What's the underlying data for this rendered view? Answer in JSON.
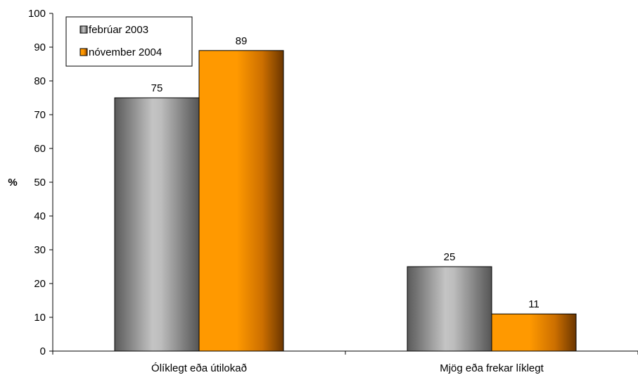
{
  "chart_data": {
    "type": "bar",
    "categories": [
      "Ólíklegt eða útilokað",
      "Mjög eða frekar líklegt"
    ],
    "series": [
      {
        "name": "febrúar 2003",
        "values": [
          75,
          25
        ],
        "color": "#b8b8b8"
      },
      {
        "name": "nóvember 2004",
        "values": [
          89,
          11
        ],
        "color": "#ff9900"
      }
    ],
    "ylabel": "%",
    "xlabel": "",
    "ylim": [
      0,
      100
    ],
    "yticks": [
      0,
      10,
      20,
      30,
      40,
      50,
      60,
      70,
      80,
      90,
      100
    ],
    "grid": false,
    "legend_position": "top-left",
    "data_labels": true
  }
}
